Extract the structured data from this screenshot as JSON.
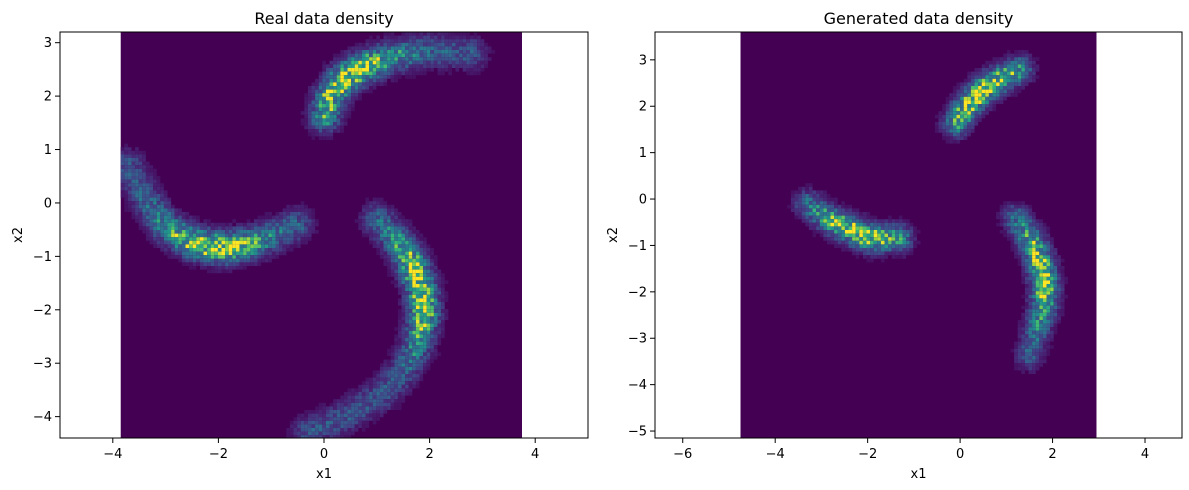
{
  "chart_data": [
    {
      "type": "heatmap",
      "title": "Real data density",
      "xlabel": "x1",
      "ylabel": "x2",
      "xlim": [
        -5.0,
        5.0
      ],
      "ylim": [
        -4.4,
        3.2
      ],
      "xticks": [
        -4,
        -2,
        0,
        2,
        4
      ],
      "yticks": [
        -4,
        -3,
        -2,
        -1,
        0,
        1,
        2,
        3
      ],
      "background_extent": {
        "x": [
          -3.85,
          3.75
        ],
        "y": [
          -4.4,
          3.2
        ]
      },
      "colormap": "viridis",
      "arms": [
        {
          "points": [
            [
              0.0,
              1.6
            ],
            [
              0.1,
              1.95
            ],
            [
              0.35,
              2.3
            ],
            [
              0.75,
              2.55
            ],
            [
              1.3,
              2.75
            ],
            [
              2.0,
              2.85
            ],
            [
              2.8,
              2.8
            ]
          ],
          "peak": [
            0.5,
            2.3
          ]
        },
        {
          "points": [
            [
              -3.7,
              0.7
            ],
            [
              -3.4,
              0.1
            ],
            [
              -3.0,
              -0.45
            ],
            [
              -2.5,
              -0.75
            ],
            [
              -1.9,
              -0.85
            ],
            [
              -1.3,
              -0.75
            ],
            [
              -0.8,
              -0.55
            ],
            [
              -0.5,
              -0.4
            ]
          ],
          "peak": [
            -2.1,
            -0.85
          ]
        },
        {
          "points": [
            [
              1.0,
              -0.3
            ],
            [
              1.35,
              -0.65
            ],
            [
              1.65,
              -1.1
            ],
            [
              1.85,
              -1.6
            ],
            [
              1.9,
              -2.1
            ],
            [
              1.8,
              -2.6
            ],
            [
              1.55,
              -3.1
            ],
            [
              1.1,
              -3.6
            ],
            [
              0.4,
              -4.0
            ],
            [
              -0.3,
              -4.3
            ]
          ],
          "peak": [
            1.8,
            -1.6
          ]
        }
      ]
    },
    {
      "type": "heatmap",
      "title": "Generated data density",
      "xlabel": "x1",
      "ylabel": "x2",
      "xlim": [
        -6.6,
        4.8
      ],
      "ylim": [
        -5.15,
        3.6
      ],
      "xticks": [
        -6,
        -4,
        -2,
        0,
        2,
        4
      ],
      "yticks": [
        -5,
        -4,
        -3,
        -2,
        -1,
        0,
        1,
        2,
        3
      ],
      "background_extent": {
        "x": [
          -4.75,
          2.95
        ],
        "y": [
          -5.15,
          3.6
        ]
      },
      "colormap": "viridis",
      "arms": [
        {
          "points": [
            [
              -0.1,
              1.6
            ],
            [
              0.15,
              2.0
            ],
            [
              0.5,
              2.35
            ],
            [
              0.9,
              2.6
            ],
            [
              1.3,
              2.8
            ]
          ],
          "peak": [
            0.5,
            2.3
          ]
        },
        {
          "points": [
            [
              -3.3,
              -0.1
            ],
            [
              -2.9,
              -0.4
            ],
            [
              -2.4,
              -0.65
            ],
            [
              -1.9,
              -0.85
            ],
            [
              -1.3,
              -0.85
            ]
          ],
          "peak": [
            -2.2,
            -0.8
          ]
        },
        {
          "points": [
            [
              1.2,
              -0.4
            ],
            [
              1.55,
              -0.9
            ],
            [
              1.75,
              -1.4
            ],
            [
              1.85,
              -1.9
            ],
            [
              1.8,
              -2.4
            ],
            [
              1.65,
              -2.9
            ],
            [
              1.5,
              -3.4
            ]
          ],
          "peak": [
            1.8,
            -1.6
          ]
        }
      ]
    }
  ]
}
